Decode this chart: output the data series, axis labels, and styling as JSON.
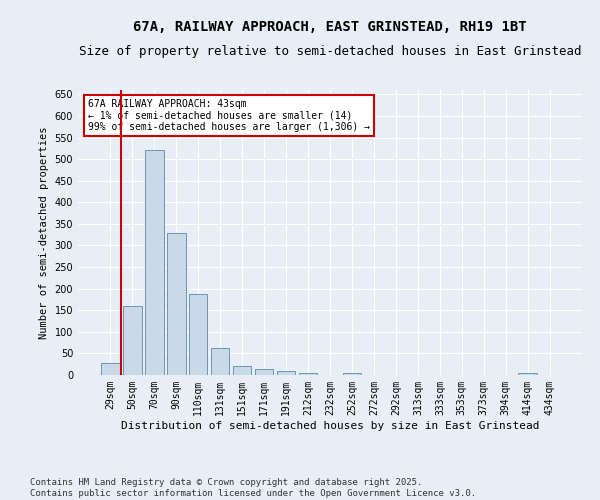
{
  "title": "67A, RAILWAY APPROACH, EAST GRINSTEAD, RH19 1BT",
  "subtitle": "Size of property relative to semi-detached houses in East Grinstead",
  "xlabel": "Distribution of semi-detached houses by size in East Grinstead",
  "ylabel": "Number of semi-detached properties",
  "categories": [
    "29sqm",
    "50sqm",
    "70sqm",
    "90sqm",
    "110sqm",
    "131sqm",
    "151sqm",
    "171sqm",
    "191sqm",
    "212sqm",
    "232sqm",
    "252sqm",
    "272sqm",
    "292sqm",
    "313sqm",
    "333sqm",
    "353sqm",
    "373sqm",
    "394sqm",
    "414sqm",
    "434sqm"
  ],
  "values": [
    28,
    160,
    520,
    328,
    188,
    63,
    20,
    13,
    10,
    5,
    0,
    4,
    0,
    0,
    0,
    0,
    0,
    0,
    0,
    5,
    0
  ],
  "bar_color": "#c9d9e8",
  "bar_edge_color": "#5a8ab0",
  "highlight_line_color": "#cc0000",
  "annotation_text": "67A RAILWAY APPROACH: 43sqm\n← 1% of semi-detached houses are smaller (14)\n99% of semi-detached houses are larger (1,306) →",
  "annotation_box_color": "#ffffff",
  "annotation_box_edge": "#cc0000",
  "ylim": [
    0,
    660
  ],
  "yticks": [
    0,
    50,
    100,
    150,
    200,
    250,
    300,
    350,
    400,
    450,
    500,
    550,
    600,
    650
  ],
  "footnote": "Contains HM Land Registry data © Crown copyright and database right 2025.\nContains public sector information licensed under the Open Government Licence v3.0.",
  "background_color": "#e8eef5",
  "plot_bg_color": "#e8eef5",
  "title_fontsize": 10,
  "subtitle_fontsize": 9,
  "tick_fontsize": 7,
  "footnote_fontsize": 6.5,
  "ylabel_fontsize": 7.5,
  "xlabel_fontsize": 8
}
